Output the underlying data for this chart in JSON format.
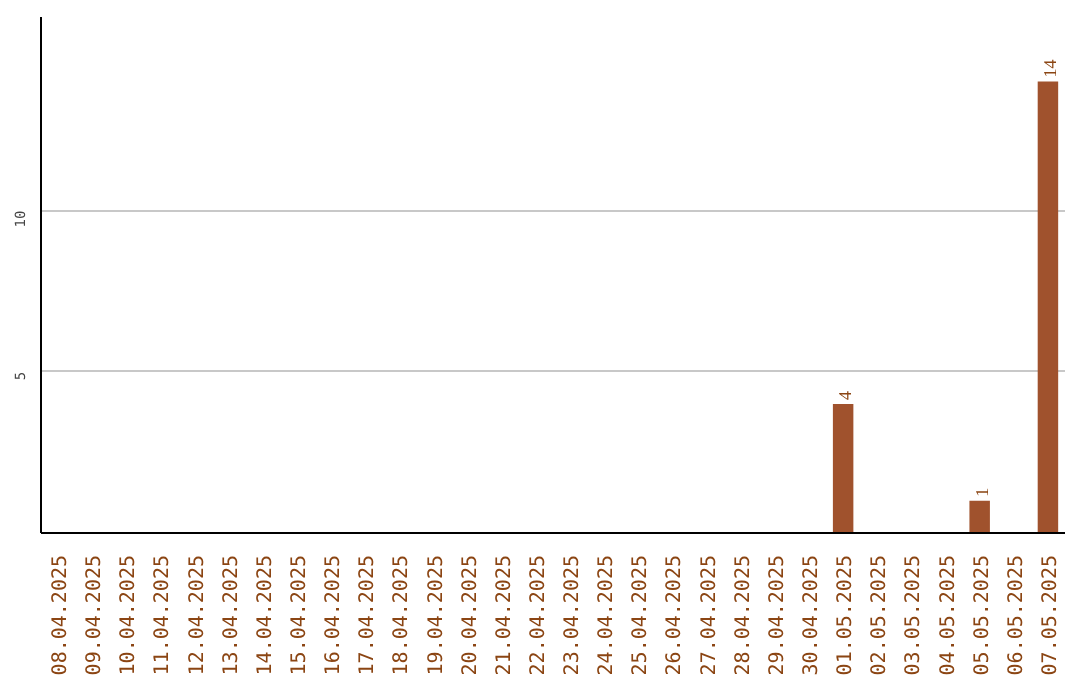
{
  "chart_data": {
    "type": "bar",
    "categories": [
      "08.04.2025",
      "09.04.2025",
      "10.04.2025",
      "11.04.2025",
      "12.04.2025",
      "13.04.2025",
      "14.04.2025",
      "15.04.2025",
      "16.04.2025",
      "17.04.2025",
      "18.04.2025",
      "19.04.2025",
      "20.04.2025",
      "21.04.2025",
      "22.04.2025",
      "23.04.2025",
      "24.04.2025",
      "25.04.2025",
      "26.04.2025",
      "27.04.2025",
      "28.04.2025",
      "29.04.2025",
      "30.04.2025",
      "01.05.2025",
      "02.05.2025",
      "03.05.2025",
      "04.05.2025",
      "05.05.2025",
      "06.05.2025",
      "07.05.2025"
    ],
    "values": [
      0,
      0,
      0,
      0,
      0,
      0,
      0,
      0,
      0,
      0,
      0,
      0,
      0,
      0,
      0,
      0,
      0,
      0,
      0,
      0,
      0,
      0,
      0,
      4,
      0,
      0,
      0,
      1,
      0,
      14
    ],
    "value_labels": [
      null,
      null,
      null,
      null,
      null,
      null,
      null,
      null,
      null,
      null,
      null,
      null,
      null,
      null,
      null,
      null,
      null,
      null,
      null,
      null,
      null,
      null,
      null,
      "4",
      null,
      null,
      null,
      "1",
      null,
      "14"
    ],
    "color": "#a0522d",
    "ylim": [
      0,
      16
    ],
    "yticks": [
      5,
      10
    ],
    "grid": "y"
  }
}
